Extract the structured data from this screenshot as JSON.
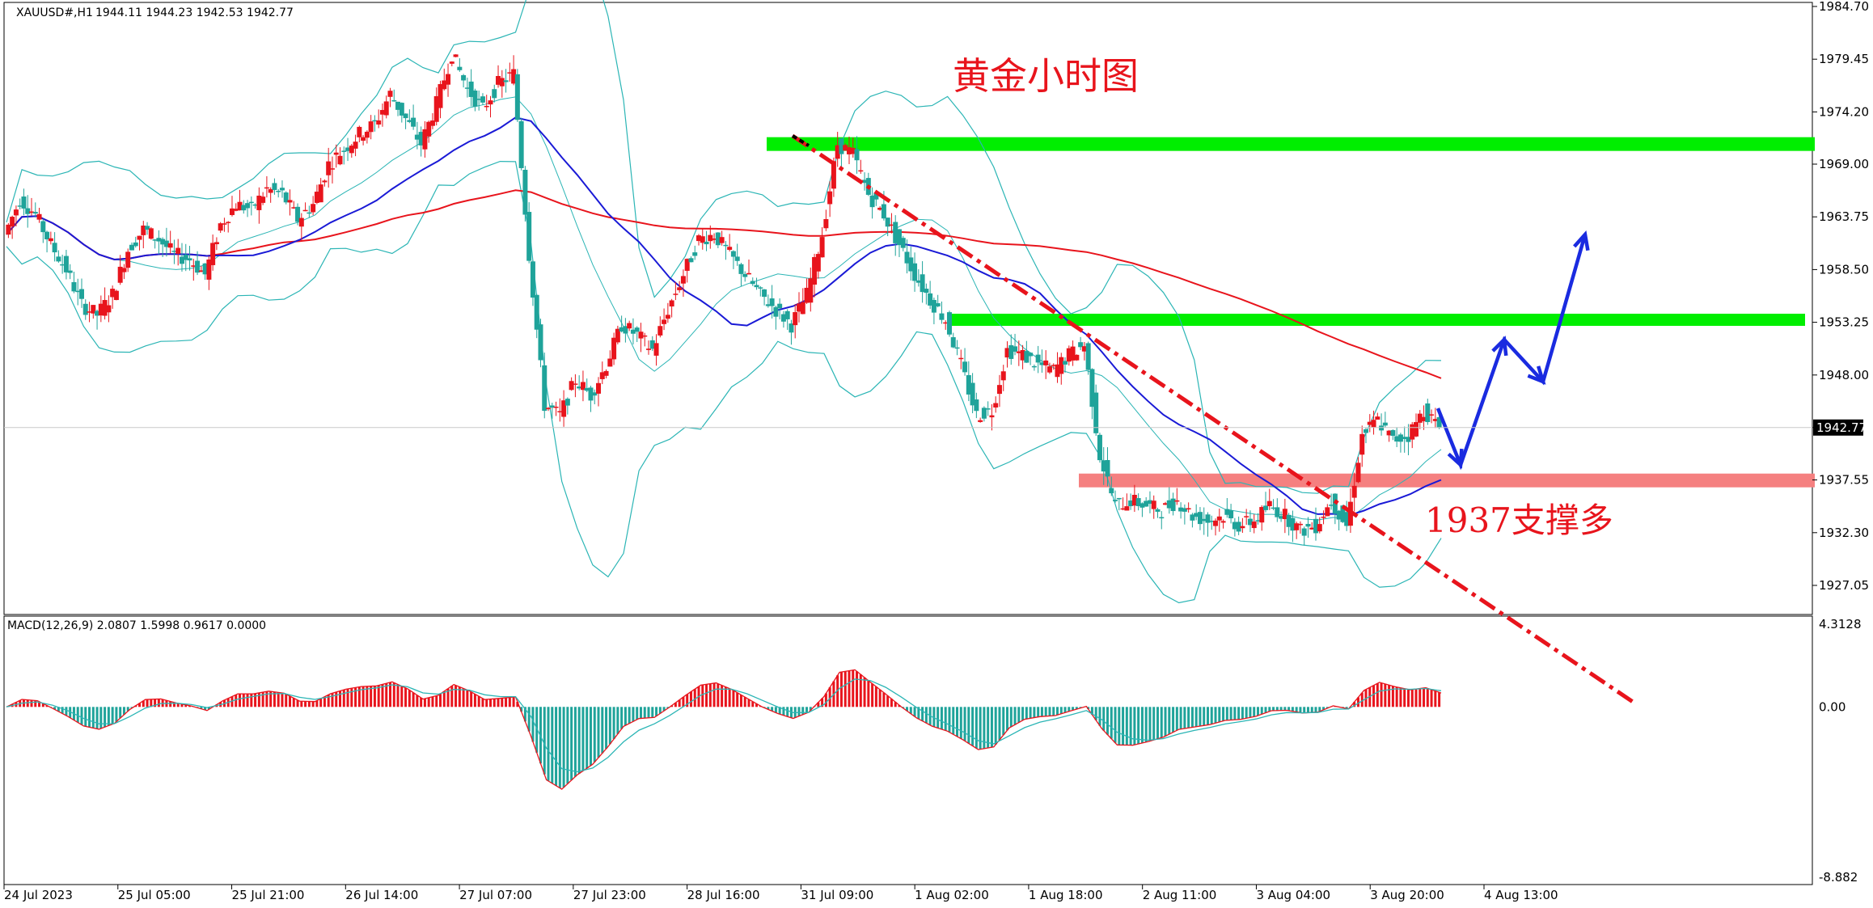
{
  "header": {
    "symbol": "XAUUSD#,H1",
    "ohlc": "1944.11 1944.23 1942.53 1942.77"
  },
  "annotations": {
    "title": "黄金小时图",
    "support_note": "1937支撑多"
  },
  "macd": {
    "label": "MACD(12,26,9) 2.0807 1.5998 0.9617 0.0000",
    "ticks": [
      4.3128,
      0.0,
      -8.882
    ],
    "tick_labels": [
      "4.3128",
      "0.00",
      "-8.882"
    ]
  },
  "colors": {
    "bull": "#e8141c",
    "bear": "#1fa39a",
    "ma_fast": "#1a1ad6",
    "ma_slow": "#e8141c",
    "band": "#2bb5b5",
    "zone_green": "#00ee00",
    "zone_red": "#f58080",
    "arrow": "#1a2be0"
  },
  "chart_data": {
    "type": "candlestick",
    "symbol": "XAUUSD#",
    "timeframe": "H1",
    "ylim": [
      1925.0,
      1985.5
    ],
    "yticks": [
      1984.7,
      1979.45,
      1974.2,
      1969.0,
      1963.75,
      1958.5,
      1953.25,
      1948.0,
      1942.77,
      1937.55,
      1932.3,
      1927.05
    ],
    "ytick_labels": [
      "1984.70",
      "1979.45",
      "1974.20",
      "1969.00",
      "1963.75",
      "1958.50",
      "1953.25",
      "1948.00",
      "1942.77",
      "1937.55",
      "1932.30",
      "1927.05"
    ],
    "current_price": 1942.77,
    "xtick_labels": [
      "24 Jul 2023",
      "25 Jul 05:00",
      "25 Jul 21:00",
      "26 Jul 14:00",
      "27 Jul 07:00",
      "27 Jul 23:00",
      "28 Jul 16:00",
      "31 Jul 09:00",
      "1 Aug 02:00",
      "1 Aug 18:00",
      "2 Aug 11:00",
      "3 Aug 04:00",
      "3 Aug 20:00",
      "4 Aug 13:00"
    ],
    "close_path": [
      1962.0,
      1965.5,
      1964.0,
      1961.0,
      1958.5,
      1955.0,
      1954.0,
      1956.0,
      1960.5,
      1962.5,
      1961.5,
      1960.0,
      1959.5,
      1958.0,
      1963.0,
      1965.0,
      1964.5,
      1966.5,
      1966.0,
      1963.5,
      1965.0,
      1969.0,
      1970.5,
      1972.0,
      1973.0,
      1976.0,
      1973.5,
      1971.0,
      1975.0,
      1980.0,
      1976.5,
      1974.5,
      1977.0,
      1978.0,
      1960.0,
      1945.0,
      1944.0,
      1947.5,
      1946.0,
      1949.0,
      1953.0,
      1952.0,
      1950.5,
      1954.5,
      1958.0,
      1961.5,
      1962.0,
      1960.0,
      1958.0,
      1956.0,
      1954.5,
      1953.0,
      1956.0,
      1962.0,
      1971.0,
      1970.0,
      1966.0,
      1964.0,
      1961.0,
      1958.0,
      1955.5,
      1953.5,
      1949.0,
      1944.0,
      1944.5,
      1950.5,
      1950.0,
      1949.0,
      1948.5,
      1950.0,
      1951.0,
      1940.0,
      1935.0,
      1935.5,
      1935.0,
      1934.5,
      1935.5,
      1934.0,
      1933.5,
      1934.0,
      1933.0,
      1933.5,
      1935.0,
      1934.0,
      1932.5,
      1933.0,
      1935.5,
      1933.0,
      1942.0,
      1943.5,
      1941.5,
      1942.0,
      1944.5,
      1942.77
    ],
    "zones": [
      {
        "type": "resistance",
        "price": 1971.0,
        "color": "green"
      },
      {
        "type": "resistance",
        "price": 1953.5,
        "color": "green"
      },
      {
        "type": "support",
        "price": 1937.5,
        "color": "red"
      }
    ],
    "macd_range": [
      -8.882,
      4.3128
    ]
  }
}
